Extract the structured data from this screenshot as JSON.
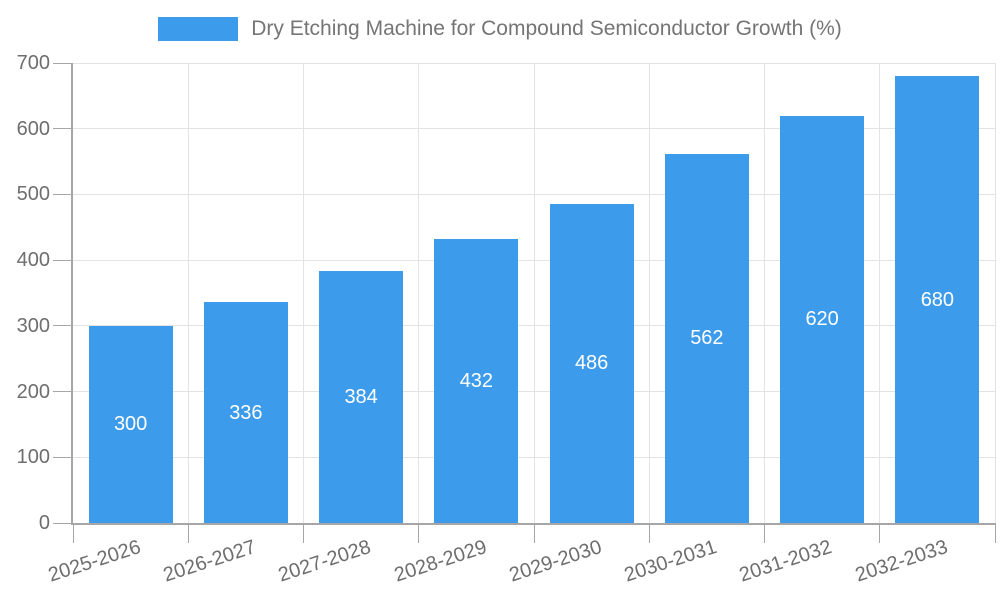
{
  "legend": {
    "label": "Dry Etching Machine for Compound Semiconductor Growth (%)"
  },
  "colors": {
    "bar": "#3D9BEB",
    "bar_label": "#FFFFFF",
    "grid_line": "#E3E3E3",
    "axis_line": "#A6A6A6",
    "tick_text": "#6E6E6E",
    "legend_text": "#757575",
    "background": "#FFFFFF"
  },
  "chart_data": {
    "type": "bar",
    "title": "Dry Etching Machine for Compound Semiconductor Growth (%)",
    "categories": [
      "2025-2026",
      "2026-2027",
      "2027-2028",
      "2028-2029",
      "2029-2030",
      "2030-2031",
      "2031-2032",
      "2032-2033"
    ],
    "values": [
      300,
      336,
      384,
      432,
      486,
      562,
      620,
      680
    ],
    "xlabel": "",
    "ylabel": "",
    "ylim": [
      0,
      700
    ],
    "yticks": [
      0,
      100,
      200,
      300,
      400,
      500,
      600,
      700
    ],
    "grid": true,
    "legend_position": "top-center",
    "value_labels": "inside-center",
    "x_label_rotation_deg": -18
  }
}
